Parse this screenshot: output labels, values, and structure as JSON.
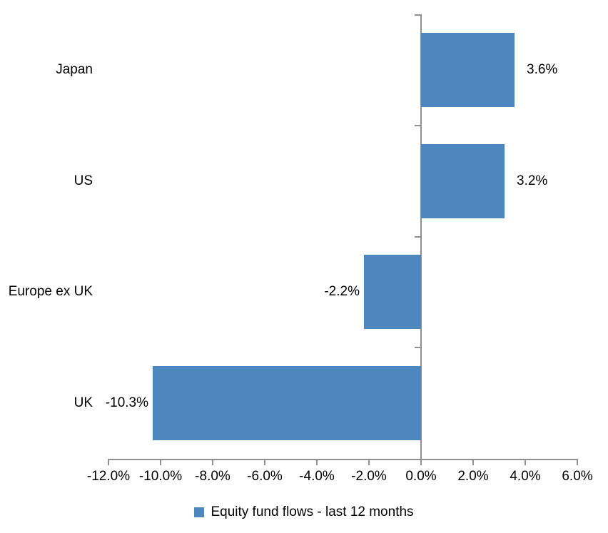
{
  "chart_data": {
    "type": "bar",
    "orientation": "horizontal",
    "title": "",
    "series_name": "Equity fund flows - last 12 months",
    "categories": [
      "Japan",
      "US",
      "Europe ex UK",
      "UK"
    ],
    "values": [
      3.6,
      3.2,
      -2.2,
      -10.3
    ],
    "value_labels": [
      "3.6%",
      "3.2%",
      "-2.2%",
      "-10.3%"
    ],
    "xlabel": "",
    "ylabel": "",
    "xlim": [
      -12.0,
      6.0
    ],
    "x_tick_step": 2.0,
    "x_ticks": [
      "-12.0%",
      "-10.0%",
      "-8.0%",
      "-6.0%",
      "-4.0%",
      "-2.0%",
      "0.0%",
      "2.0%",
      "4.0%",
      "6.0%"
    ],
    "grid": false,
    "data_label_position": "outside-end",
    "legend_position": "bottom-center",
    "colors": {
      "bar": "#4E87BE",
      "axis": "#909090",
      "text": "#000000",
      "background": "#FFFFFF"
    }
  }
}
